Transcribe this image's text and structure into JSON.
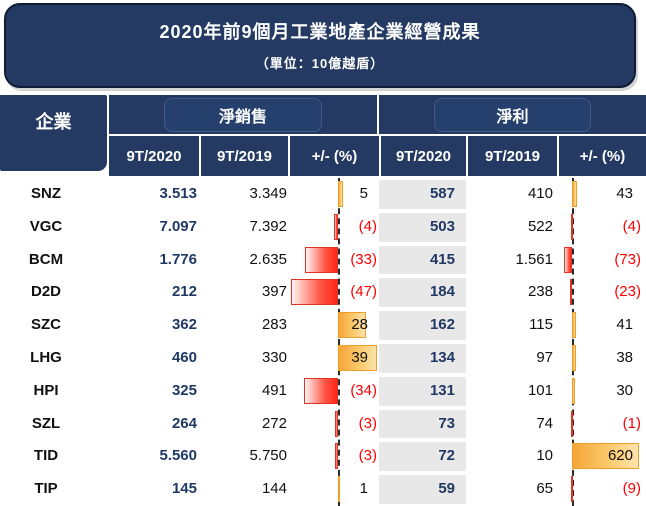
{
  "title": {
    "main": "2020年前9個月工業地產企業經營成果",
    "unit": "（單位：10億越盾）"
  },
  "table": {
    "header": {
      "company": "企業",
      "net_sales": "淨銷售",
      "net_profit": "淨利",
      "period_2020": "9T/2020",
      "period_2019": "9T/2019",
      "change": "+/- (%)"
    }
  },
  "colors": {
    "navy": "#243A62",
    "value_navy": "#1F3864",
    "red": "#FF0000",
    "gray_cell": "#E9E8E8",
    "positive_bar": "#F5A538",
    "negative_bar": "#FF2516"
  },
  "chart_data": {
    "type": "table",
    "title": "2020年前9個月工業地產企業經營成果",
    "unit": "10億越盾",
    "column_groups": [
      "企業",
      "淨銷售",
      "淨利"
    ],
    "columns": [
      "企業",
      "淨銷售 9T/2020",
      "淨銷售 9T/2019",
      "淨銷售 +/- (%)",
      "淨利 9T/2020",
      "淨利 9T/2019",
      "淨利 +/- (%)"
    ],
    "bar_axis_note": "+/- (%) columns rendered as data bars around dashed zero line: positive orange right, negative red left",
    "rows": [
      {
        "ticker": "SNZ",
        "ns_2020": "3.513",
        "ns_2019": "3.349",
        "ns_pct": 5,
        "ns_pct_label": "5",
        "np_2020": "587",
        "np_2019": "410",
        "np_pct": 43,
        "np_pct_label": "43"
      },
      {
        "ticker": "VGC",
        "ns_2020": "7.097",
        "ns_2019": "7.392",
        "ns_pct": -4,
        "ns_pct_label": "(4)",
        "np_2020": "503",
        "np_2019": "522",
        "np_pct": -4,
        "np_pct_label": "(4)"
      },
      {
        "ticker": "BCM",
        "ns_2020": "1.776",
        "ns_2019": "2.635",
        "ns_pct": -33,
        "ns_pct_label": "(33)",
        "np_2020": "415",
        "np_2019": "1.561",
        "np_pct": -73,
        "np_pct_label": "(73)"
      },
      {
        "ticker": "D2D",
        "ns_2020": "212",
        "ns_2019": "397",
        "ns_pct": -47,
        "ns_pct_label": "(47)",
        "np_2020": "184",
        "np_2019": "238",
        "np_pct": -23,
        "np_pct_label": "(23)"
      },
      {
        "ticker": "SZC",
        "ns_2020": "362",
        "ns_2019": "283",
        "ns_pct": 28,
        "ns_pct_label": "28",
        "np_2020": "162",
        "np_2019": "115",
        "np_pct": 41,
        "np_pct_label": "41"
      },
      {
        "ticker": "LHG",
        "ns_2020": "460",
        "ns_2019": "330",
        "ns_pct": 39,
        "ns_pct_label": "39",
        "np_2020": "134",
        "np_2019": "97",
        "np_pct": 38,
        "np_pct_label": "38"
      },
      {
        "ticker": "HPI",
        "ns_2020": "325",
        "ns_2019": "491",
        "ns_pct": -34,
        "ns_pct_label": "(34)",
        "np_2020": "131",
        "np_2019": "101",
        "np_pct": 30,
        "np_pct_label": "30"
      },
      {
        "ticker": "SZL",
        "ns_2020": "264",
        "ns_2019": "272",
        "ns_pct": -3,
        "ns_pct_label": "(3)",
        "np_2020": "73",
        "np_2019": "74",
        "np_pct": -1,
        "np_pct_label": "(1)"
      },
      {
        "ticker": "TID",
        "ns_2020": "5.560",
        "ns_2019": "5.750",
        "ns_pct": -3,
        "ns_pct_label": "(3)",
        "np_2020": "72",
        "np_2019": "10",
        "np_pct": 620,
        "np_pct_label": "620"
      },
      {
        "ticker": "TIP",
        "ns_2020": "145",
        "ns_2019": "144",
        "ns_pct": 1,
        "ns_pct_label": "1",
        "np_2020": "59",
        "np_2019": "65",
        "np_pct": -9,
        "np_pct_label": "(9)"
      }
    ]
  }
}
